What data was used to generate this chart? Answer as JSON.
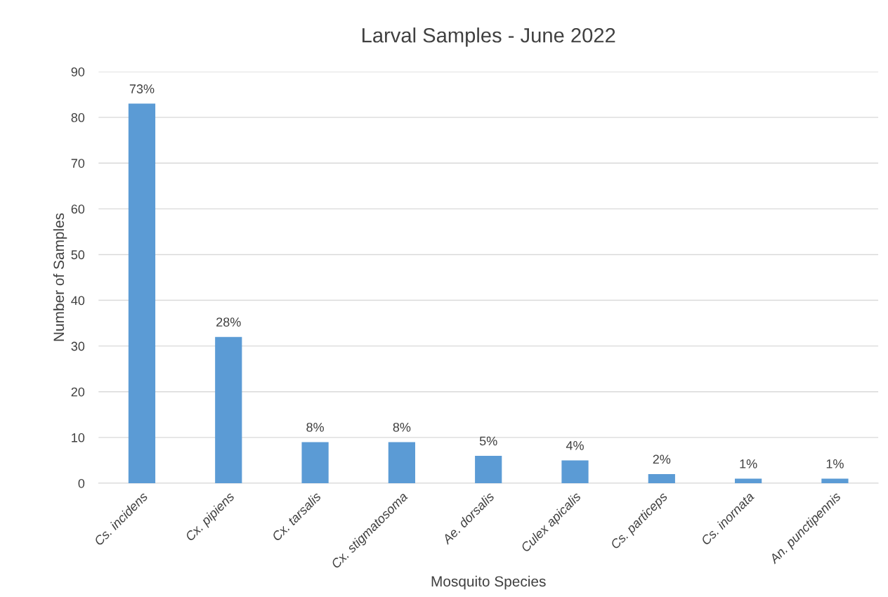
{
  "chart_data": {
    "type": "bar",
    "title": "Larval Samples - June 2022",
    "xlabel": "Mosquito Species",
    "ylabel": "Number of Samples",
    "categories": [
      "Cs. incidens",
      "Cx. pipiens",
      "Cx. tarsalis",
      "Cx. stigmatosoma",
      "Ae. dorsalis",
      "Culex apicalis",
      "Cs. particeps",
      "Cs. inornata",
      "An. punctipennis"
    ],
    "values": [
      83,
      32,
      9,
      9,
      6,
      5,
      2,
      1,
      1
    ],
    "annotations": [
      {
        "text": "73%",
        "x": "Cs. incidens",
        "y": 83
      },
      {
        "text": "28%",
        "x": "Cx. pipiens",
        "y": 32
      },
      {
        "text": "8%",
        "x": "Cx. tarsalis",
        "y": 9
      },
      {
        "text": "8%",
        "x": "Cx. stigmatosoma",
        "y": 9
      },
      {
        "text": "5%",
        "x": "Ae. dorsalis",
        "y": 6
      },
      {
        "text": "4%",
        "x": "Culex apicalis",
        "y": 5
      },
      {
        "text": "2%",
        "x": "Cs. particeps",
        "y": 2
      },
      {
        "text": "1%",
        "x": "Cs. inornata",
        "y": 1
      },
      {
        "text": "1%",
        "x": "An. punctipennis",
        "y": 1
      }
    ],
    "color": "#5b9bd5",
    "ylim": [
      0,
      90
    ],
    "yticks": [
      0,
      10,
      20,
      30,
      40,
      50,
      60,
      70,
      80,
      90
    ],
    "grid": "y",
    "legend": false
  }
}
